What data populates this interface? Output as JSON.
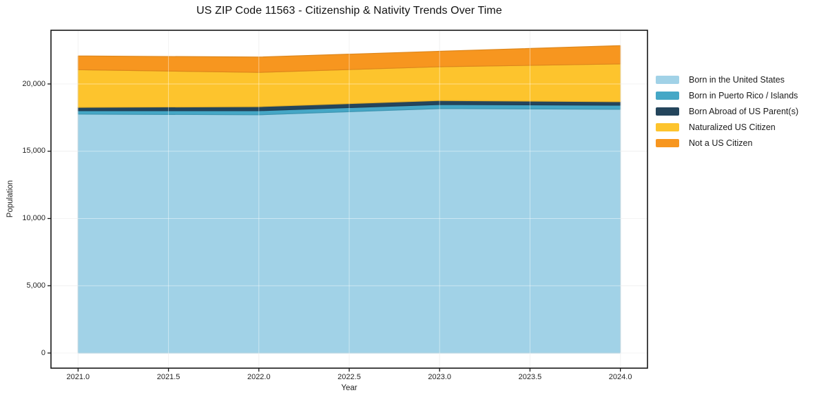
{
  "chart": {
    "title": "US ZIP Code 11563 - Citizenship & Nativity Trends Over Time",
    "xlabel": "Year",
    "ylabel": "Population"
  },
  "chart_data": {
    "type": "area",
    "stacked": true,
    "title": "US ZIP Code 11563 - Citizenship & Nativity Trends Over Time",
    "xlabel": "Year",
    "ylabel": "Population",
    "x": [
      2021,
      2022,
      2023,
      2024
    ],
    "series": [
      {
        "name": "Born in the United States",
        "color": "#A1D2E7",
        "values": [
          17760,
          17710,
          18170,
          18120
        ]
      },
      {
        "name": "Born in Puerto Rico / Islands",
        "color": "#45A7C6",
        "values": [
          250,
          300,
          300,
          300
        ]
      },
      {
        "name": "Born Abroad of US Parent(s)",
        "color": "#24455C",
        "values": [
          250,
          300,
          300,
          260
        ]
      },
      {
        "name": "Naturalized US Citizen",
        "color": "#FDC42D",
        "values": [
          2800,
          2550,
          2510,
          2810
        ]
      },
      {
        "name": "Not a US Citizen",
        "color": "#F7961F",
        "values": [
          1020,
          1140,
          1150,
          1360
        ]
      }
    ],
    "totals": [
      22080,
      22000,
      22430,
      22850
    ],
    "x_tick_values": [
      2021,
      2021.5,
      2022,
      2022.5,
      2023,
      2023.5,
      2024
    ],
    "x_tick_labels": [
      "2021.0",
      "2021.5",
      "2022.0",
      "2022.5",
      "2023.0",
      "2023.5",
      "2024.0"
    ],
    "y_tick_values": [
      0,
      5000,
      10000,
      15000,
      20000
    ],
    "y_tick_labels": [
      "0",
      "5,000",
      "10,000",
      "15,000",
      "20,000"
    ],
    "xlim": [
      2020.85,
      2024.15
    ],
    "ylim": [
      -1125,
      23990
    ],
    "grid": true,
    "legend_position": "right",
    "colors": {
      "background": "#ffffff",
      "spine": "#151515",
      "gridline": "#e9e9e9",
      "grid_overlay": "rgba(255,255,255,0.45)",
      "text": "#1f1f1f"
    }
  }
}
